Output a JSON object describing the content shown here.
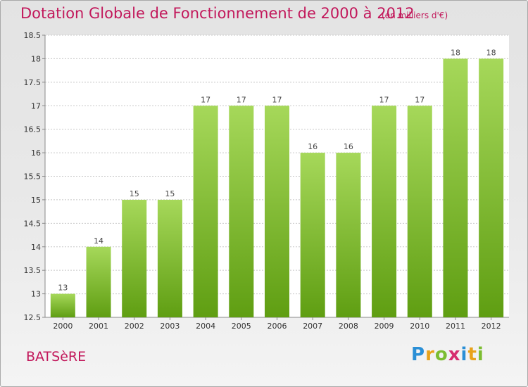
{
  "chart_data": {
    "type": "bar",
    "title": "Dotation Globale de Fonctionnement de 2000 à 2012",
    "subtitle": "(en milliers d'€)",
    "categories": [
      "2000",
      "2001",
      "2002",
      "2003",
      "2004",
      "2005",
      "2006",
      "2007",
      "2008",
      "2009",
      "2010",
      "2011",
      "2012"
    ],
    "values": [
      13,
      14,
      15,
      15,
      17,
      17,
      17,
      16,
      16,
      17,
      17,
      18,
      18
    ],
    "ylim": [
      12.5,
      18.5
    ],
    "yticks": [
      "12.5",
      "13",
      "13.5",
      "14",
      "14.5",
      "15",
      "15.5",
      "16",
      "16.5",
      "17",
      "17.5",
      "18",
      "18.5"
    ],
    "grid": true,
    "bar_color": "#7dbb2e",
    "bar_color_light": "#a6d85a"
  },
  "footer": {
    "commune": "BATSèRE",
    "brand_letters": [
      {
        "ch": "P",
        "color": "#2a8fd6"
      },
      {
        "ch": "r",
        "color": "#e8a21a"
      },
      {
        "ch": "o",
        "color": "#7cbd31"
      },
      {
        "ch": "x",
        "color": "#d62d6e"
      },
      {
        "ch": "i",
        "color": "#2a8fd6"
      },
      {
        "ch": "t",
        "color": "#e8a21a"
      },
      {
        "ch": "i",
        "color": "#7cbd31"
      }
    ]
  },
  "colors": {
    "title": "#c2185b",
    "grid": "#c8c8c8",
    "axis": "#888888"
  }
}
